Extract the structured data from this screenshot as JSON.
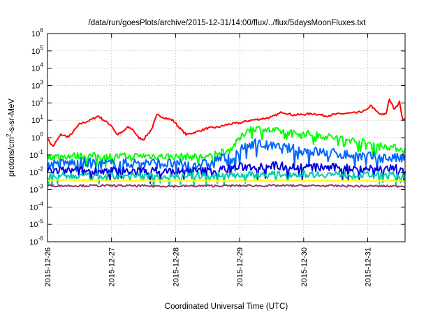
{
  "chart_data": {
    "type": "line",
    "title": "/data/run/goesPlots/archive/2015-12-31/14:00/flux/../flux/5daysMoonFluxes.txt",
    "xlabel": "Coordinated Universal Time (UTC)",
    "ylabel": {
      "before": "protons/cm",
      "sup": "2",
      "after": "-s-sr-MeV"
    },
    "y_scale": "log",
    "ylim": [
      1e-06,
      1000000.0
    ],
    "xlim": [
      "2015-12-26T00:00",
      "2015-12-31T14:00"
    ],
    "grid": true,
    "legend": "none",
    "y_ticks": [
      {
        "value": 1e-06,
        "base": "10",
        "exp": "-6"
      },
      {
        "value": 1e-05,
        "base": "10",
        "exp": "-5"
      },
      {
        "value": 0.0001,
        "base": "10",
        "exp": "-4"
      },
      {
        "value": 0.001,
        "base": "10",
        "exp": "-3"
      },
      {
        "value": 0.01,
        "base": "10",
        "exp": "-2"
      },
      {
        "value": 0.1,
        "base": "10",
        "exp": "-1"
      },
      {
        "value": 1,
        "base": "10",
        "exp": "0"
      },
      {
        "value": 10.0,
        "base": "10",
        "exp": "1"
      },
      {
        "value": 100.0,
        "base": "10",
        "exp": "2"
      },
      {
        "value": 1000.0,
        "base": "10",
        "exp": "3"
      },
      {
        "value": 10000.0,
        "base": "10",
        "exp": "4"
      },
      {
        "value": 100000.0,
        "base": "10",
        "exp": "5"
      },
      {
        "value": 1000000.0,
        "base": "10",
        "exp": "6"
      }
    ],
    "x_ticks": [
      {
        "value": "2015-12-26T00:00",
        "label": "2015-12-26"
      },
      {
        "value": "2015-12-27T00:00",
        "label": "2015-12-27"
      },
      {
        "value": "2015-12-28T00:00",
        "label": "2015-12-28"
      },
      {
        "value": "2015-12-29T00:00",
        "label": "2015-12-29"
      },
      {
        "value": "2015-12-30T00:00",
        "label": "2015-12-30"
      },
      {
        "value": "2015-12-31T00:00",
        "label": "2015-12-31"
      }
    ],
    "series": [
      {
        "color": "#ff0000",
        "noise": 0.06,
        "points": [
          [
            "2015-12-26T00:00",
            0.9
          ],
          [
            "2015-12-26T02:00",
            0.3
          ],
          [
            "2015-12-26T05:00",
            1.5
          ],
          [
            "2015-12-26T08:00",
            1.1
          ],
          [
            "2015-12-26T12:00",
            6
          ],
          [
            "2015-12-26T16:00",
            10
          ],
          [
            "2015-12-26T19:00",
            18
          ],
          [
            "2015-12-26T22:00",
            8
          ],
          [
            "2015-12-27T00:00",
            5
          ],
          [
            "2015-12-27T02:00",
            1.5
          ],
          [
            "2015-12-27T04:00",
            2
          ],
          [
            "2015-12-27T06:00",
            4
          ],
          [
            "2015-12-27T08:00",
            3
          ],
          [
            "2015-12-27T10:00",
            1
          ],
          [
            "2015-12-27T12:00",
            0.8
          ],
          [
            "2015-12-27T15:00",
            3
          ],
          [
            "2015-12-27T17:00",
            20
          ],
          [
            "2015-12-27T20:00",
            14
          ],
          [
            "2015-12-27T23:00",
            10
          ],
          [
            "2015-12-28T02:00",
            3
          ],
          [
            "2015-12-28T04:00",
            1.5
          ],
          [
            "2015-12-28T08:00",
            2.2
          ],
          [
            "2015-12-28T12:00",
            3.5
          ],
          [
            "2015-12-28T16:00",
            4
          ],
          [
            "2015-12-28T20:00",
            6
          ],
          [
            "2015-12-29T00:00",
            7
          ],
          [
            "2015-12-29T04:00",
            10
          ],
          [
            "2015-12-29T08:00",
            12
          ],
          [
            "2015-12-29T12:00",
            15
          ],
          [
            "2015-12-29T16:00",
            30
          ],
          [
            "2015-12-29T20:00",
            20
          ],
          [
            "2015-12-30T00:00",
            22
          ],
          [
            "2015-12-30T04:00",
            24
          ],
          [
            "2015-12-30T08:00",
            18
          ],
          [
            "2015-12-30T12:00",
            22
          ],
          [
            "2015-12-30T16:00",
            25
          ],
          [
            "2015-12-30T20:00",
            27
          ],
          [
            "2015-12-31T00:00",
            40
          ],
          [
            "2015-12-31T01:00",
            80
          ],
          [
            "2015-12-31T03:00",
            35
          ],
          [
            "2015-12-31T05:00",
            20
          ],
          [
            "2015-12-31T07:00",
            25
          ],
          [
            "2015-12-31T08:00",
            180
          ],
          [
            "2015-12-31T10:00",
            40
          ],
          [
            "2015-12-31T12:00",
            120
          ],
          [
            "2015-12-31T13:00",
            12
          ],
          [
            "2015-12-31T14:00",
            12
          ]
        ]
      },
      {
        "color": "#00ff00",
        "noise": 0.2,
        "points": [
          [
            "2015-12-26T00:00",
            0.08
          ],
          [
            "2015-12-26T12:00",
            0.09
          ],
          [
            "2015-12-27T00:00",
            0.08
          ],
          [
            "2015-12-27T12:00",
            0.09
          ],
          [
            "2015-12-28T00:00",
            0.08
          ],
          [
            "2015-12-28T12:00",
            0.08
          ],
          [
            "2015-12-28T14:30",
            0.08
          ],
          [
            "2015-12-28T15:00",
            0.15
          ],
          [
            "2015-12-28T20:00",
            0.18
          ],
          [
            "2015-12-29T00:00",
            0.8
          ],
          [
            "2015-12-29T03:00",
            3
          ],
          [
            "2015-12-29T06:00",
            3.5
          ],
          [
            "2015-12-29T12:00",
            2.5
          ],
          [
            "2015-12-30T00:00",
            1.8
          ],
          [
            "2015-12-30T12:00",
            1.0
          ],
          [
            "2015-12-31T00:00",
            0.5
          ],
          [
            "2015-12-31T08:00",
            0.3
          ],
          [
            "2015-12-31T14:00",
            0.2
          ]
        ]
      },
      {
        "color": "#0066ff",
        "noise": 0.3,
        "points": [
          [
            "2015-12-26T00:00",
            0.03
          ],
          [
            "2015-12-26T12:00",
            0.035
          ],
          [
            "2015-12-27T00:00",
            0.03
          ],
          [
            "2015-12-27T12:00",
            0.035
          ],
          [
            "2015-12-28T00:00",
            0.03
          ],
          [
            "2015-12-28T12:00",
            0.03
          ],
          [
            "2015-12-28T14:30",
            0.03
          ],
          [
            "2015-12-28T15:00",
            0.06
          ],
          [
            "2015-12-28T22:00",
            0.07
          ],
          [
            "2015-12-29T02:00",
            0.3
          ],
          [
            "2015-12-29T05:00",
            0.5
          ],
          [
            "2015-12-29T12:00",
            0.3
          ],
          [
            "2015-12-30T00:00",
            0.18
          ],
          [
            "2015-12-30T12:00",
            0.12
          ],
          [
            "2015-12-31T00:00",
            0.08
          ],
          [
            "2015-12-31T14:00",
            0.06
          ]
        ]
      },
      {
        "color": "#0000dd",
        "noise": 0.25,
        "points": [
          [
            "2015-12-26T00:00",
            0.012
          ],
          [
            "2015-12-27T00:00",
            0.012
          ],
          [
            "2015-12-28T00:00",
            0.011
          ],
          [
            "2015-12-28T14:00",
            0.012
          ],
          [
            "2015-12-29T00:00",
            0.02
          ],
          [
            "2015-12-29T12:00",
            0.025
          ],
          [
            "2015-12-30T00:00",
            0.02
          ],
          [
            "2015-12-31T00:00",
            0.017
          ],
          [
            "2015-12-31T14:00",
            0.015
          ]
        ]
      },
      {
        "color": "#00ccaa",
        "noise": 0.2,
        "points": [
          [
            "2015-12-26T00:00",
            0.006
          ],
          [
            "2015-12-27T00:00",
            0.006
          ],
          [
            "2015-12-28T00:00",
            0.006
          ],
          [
            "2015-12-29T00:00",
            0.007
          ],
          [
            "2015-12-30T00:00",
            0.008
          ],
          [
            "2015-12-31T00:00",
            0.007
          ],
          [
            "2015-12-31T14:00",
            0.007
          ]
        ]
      },
      {
        "color": "#ffff00",
        "noise": 0.06,
        "points": [
          [
            "2015-12-26T00:00",
            0.0035
          ],
          [
            "2015-12-27T00:00",
            0.0034
          ],
          [
            "2015-12-28T00:00",
            0.0033
          ],
          [
            "2015-12-29T00:00",
            0.0034
          ],
          [
            "2015-12-30T00:00",
            0.0033
          ],
          [
            "2015-12-31T00:00",
            0.0033
          ],
          [
            "2015-12-31T14:00",
            0.0033
          ]
        ]
      },
      {
        "color": "#993366",
        "noise": 0.06,
        "points": [
          [
            "2015-12-26T00:00",
            0.0017
          ],
          [
            "2015-12-27T00:00",
            0.0017
          ],
          [
            "2015-12-28T00:00",
            0.0016
          ],
          [
            "2015-12-29T00:00",
            0.0017
          ],
          [
            "2015-12-30T00:00",
            0.0017
          ],
          [
            "2015-12-31T00:00",
            0.0016
          ],
          [
            "2015-12-31T14:00",
            0.0016
          ]
        ]
      }
    ]
  }
}
